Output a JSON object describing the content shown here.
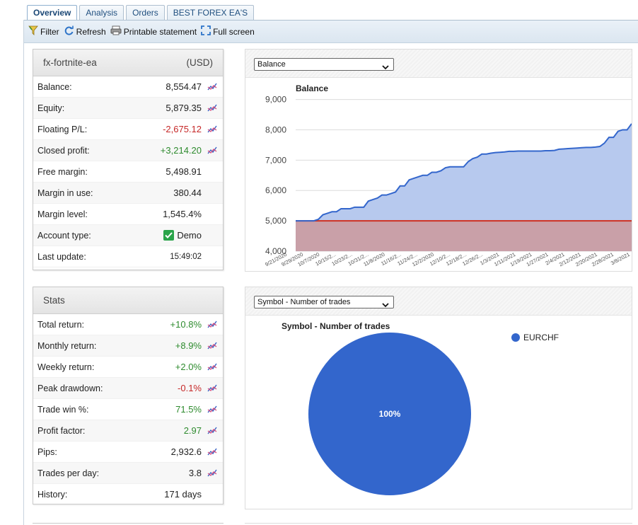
{
  "tabs": [
    {
      "label": "Overview",
      "active": true
    },
    {
      "label": "Analysis"
    },
    {
      "label": "Orders"
    },
    {
      "label": "BEST FOREX EA'S"
    }
  ],
  "toolbar": {
    "filter": "Filter",
    "refresh": "Refresh",
    "print": "Printable statement",
    "fullscreen": "Full screen"
  },
  "account": {
    "name": "fx-fortnite-ea",
    "currency": "(USD)",
    "rows": [
      {
        "label": "Balance:",
        "value": "8,554.47"
      },
      {
        "label": "Equity:",
        "value": "5,879.35"
      },
      {
        "label": "Floating P/L:",
        "value": "-2,675.12"
      },
      {
        "label": "Closed profit:",
        "value": "+3,214.20"
      },
      {
        "label": "Free margin:",
        "value": "5,498.91"
      },
      {
        "label": "Margin in use:",
        "value": "380.44"
      },
      {
        "label": "Margin level:",
        "value": "1,545.4%"
      },
      {
        "label": "Account type:",
        "value": "Demo"
      },
      {
        "label": "Last update:",
        "value": "15:49:02"
      }
    ]
  },
  "stats": {
    "title": "Stats",
    "rows": [
      {
        "label": "Total return:",
        "value": "+10.8%"
      },
      {
        "label": "Monthly return:",
        "value": "+8.9%"
      },
      {
        "label": "Weekly return:",
        "value": "+2.0%"
      },
      {
        "label": "Peak drawdown:",
        "value": "-0.1%"
      },
      {
        "label": "Trade win %:",
        "value": "71.5%"
      },
      {
        "label": "Profit factor:",
        "value": "2.97"
      },
      {
        "label": "Pips:",
        "value": "2,932.6"
      },
      {
        "label": "Trades per day:",
        "value": "3.8"
      },
      {
        "label": "History:",
        "value": "171 days"
      }
    ]
  },
  "balance_select": "Balance",
  "pie_select": "Symbol - Number of trades",
  "colors": {
    "positive": "#2e8b2e",
    "negative": "#c62828",
    "balance_line": "#3366cc",
    "balance_fill": "#b7c9ee",
    "drawdown_fill": "#c9a0a8",
    "zero_line": "#d03020",
    "pie": "#3366cc"
  },
  "chart_data": [
    {
      "type": "area",
      "title": "Balance",
      "ylim": [
        4000,
        9200
      ],
      "yticks": [
        "9,000",
        "8,000",
        "7,000",
        "6,000",
        "5,000",
        "4,000"
      ],
      "ytick_values": [
        9000,
        8000,
        7000,
        6000,
        5000,
        4000
      ],
      "baseline": 5000,
      "grid": true,
      "x_labels": [
        "9/21/2020",
        "9/29/2020",
        "10/7/2020",
        "10/15/2...",
        "10/23/2...",
        "10/31/2...",
        "11/8/2020",
        "11/16/2...",
        "11/24/2...",
        "12/2/2020",
        "12/10/2...",
        "12/18/2...",
        "12/26/2...",
        "1/3/2021",
        "1/11/2021",
        "1/19/2021",
        "1/27/2021",
        "2/4/2021",
        "2/12/2021",
        "2/20/2021",
        "2/28/2021",
        "3/8/2021"
      ],
      "series": [
        {
          "values": [
            5000,
            5000,
            5000,
            5000,
            5000,
            5050,
            5200,
            5250,
            5300,
            5300,
            5400,
            5400,
            5400,
            5450,
            5450,
            5450,
            5650,
            5700,
            5750,
            5850,
            5850,
            5900,
            5950,
            6150,
            6150,
            6350,
            6400,
            6450,
            6500,
            6500,
            6600,
            6600,
            6650,
            6750,
            6780,
            6780,
            6780,
            6780,
            6950,
            7050,
            7100,
            7200,
            7200,
            7230,
            7250,
            7260,
            7270,
            7290,
            7290,
            7300,
            7300,
            7300,
            7300,
            7300,
            7300,
            7310,
            7310,
            7320,
            7360,
            7370,
            7380,
            7390,
            7400,
            7410,
            7420,
            7420,
            7430,
            7450,
            7560,
            7750,
            7750,
            7950,
            8000,
            8000,
            8200
          ]
        }
      ]
    },
    {
      "type": "pie",
      "title": "Symbol - Number of trades",
      "series": [
        {
          "name": "EURCHF",
          "value": 100,
          "label": "100%"
        }
      ],
      "legend": "right"
    }
  ]
}
